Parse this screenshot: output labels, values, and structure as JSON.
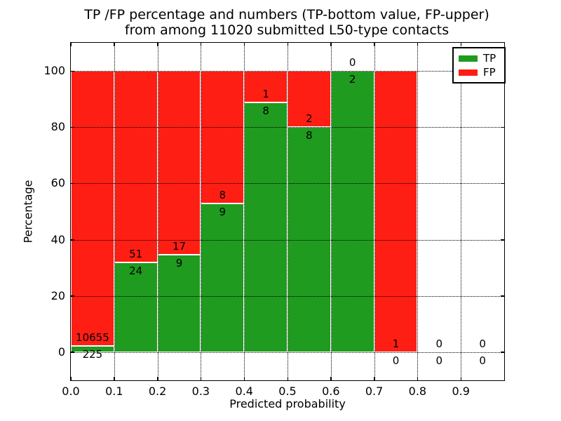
{
  "figure": {
    "title_lines": [
      "TP /FP percentage and numbers (TP-bottom value, FP-upper)",
      "from among 11020 submitted L50-type contacts"
    ],
    "xlabel": "Predicted probability",
    "ylabel": "Percentage"
  },
  "legend": {
    "items": [
      {
        "label": "TP",
        "color": "#1f9b1f"
      },
      {
        "label": "FP",
        "color": "#ff1e14"
      }
    ]
  },
  "chart_data": {
    "type": "bar",
    "stacked": true,
    "title": "TP /FP percentage and numbers (TP-bottom value, FP-upper)\nfrom among 11020 submitted L50-type contacts",
    "xlabel": "Predicted probability",
    "ylabel": "Percentage",
    "xlim": [
      0.0,
      1.0
    ],
    "ylim": [
      -10,
      110
    ],
    "grid": "dotted",
    "legend_position": "upper-right",
    "bin_width": 0.1,
    "x_tick_labels": [
      "0.0",
      "0.1",
      "0.2",
      "0.3",
      "0.4",
      "0.5",
      "0.6",
      "0.7",
      "0.8",
      "0.9"
    ],
    "x_tick_values": [
      0.0,
      0.1,
      0.2,
      0.3,
      0.4,
      0.5,
      0.6,
      0.7,
      0.8,
      0.9
    ],
    "y_tick_labels": [
      "0",
      "20",
      "40",
      "60",
      "80",
      "100"
    ],
    "y_tick_values": [
      0,
      20,
      40,
      60,
      80,
      100
    ],
    "series": [
      {
        "name": "TP",
        "color": "#1f9b1f"
      },
      {
        "name": "FP",
        "color": "#ff1e14"
      }
    ],
    "bins": [
      {
        "x_start": 0.0,
        "x_end": 0.1,
        "tp_count": 225,
        "fp_count": 10655,
        "tp_pct": 2.1
      },
      {
        "x_start": 0.1,
        "x_end": 0.2,
        "tp_count": 24,
        "fp_count": 51,
        "tp_pct": 32.0
      },
      {
        "x_start": 0.2,
        "x_end": 0.3,
        "tp_count": 9,
        "fp_count": 17,
        "tp_pct": 34.6
      },
      {
        "x_start": 0.3,
        "x_end": 0.4,
        "tp_count": 9,
        "fp_count": 8,
        "tp_pct": 52.9
      },
      {
        "x_start": 0.4,
        "x_end": 0.5,
        "tp_count": 8,
        "fp_count": 1,
        "tp_pct": 88.9
      },
      {
        "x_start": 0.5,
        "x_end": 0.6,
        "tp_count": 8,
        "fp_count": 2,
        "tp_pct": 80.0
      },
      {
        "x_start": 0.6,
        "x_end": 0.7,
        "tp_count": 2,
        "fp_count": 0,
        "tp_pct": 100.0
      },
      {
        "x_start": 0.7,
        "x_end": 0.8,
        "tp_count": 0,
        "fp_count": 1,
        "tp_pct": 0.0
      },
      {
        "x_start": 0.8,
        "x_end": 0.9,
        "tp_count": 0,
        "fp_count": 0,
        "tp_pct": null
      },
      {
        "x_start": 0.9,
        "x_end": 1.0,
        "tp_count": 0,
        "fp_count": 0,
        "tp_pct": null
      }
    ]
  }
}
